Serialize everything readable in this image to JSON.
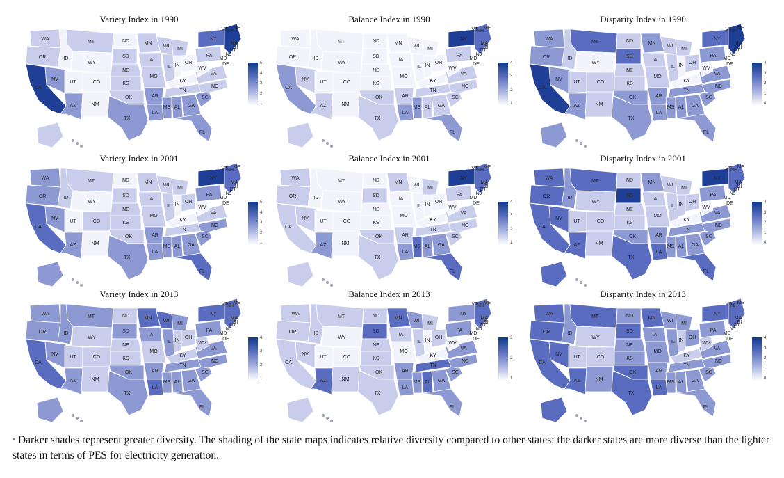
{
  "panels": [
    {
      "title": "Variety Index in 1990",
      "legend": [
        "5",
        "4",
        "3",
        "2",
        "1"
      ],
      "shade": {
        "WA": 1,
        "OR": 1,
        "CA": 4,
        "NV": 2,
        "ID": 0,
        "MT": 1,
        "WY": 0,
        "UT": 0,
        "CO": 0,
        "AZ": 2,
        "NM": 0,
        "ND": 0,
        "SD": 1,
        "NE": 1,
        "KS": 1,
        "OK": 1,
        "TX": 2,
        "MN": 1,
        "IA": 1,
        "MO": 1,
        "AR": 2,
        "LA": 2,
        "WI": 1,
        "IL": 1,
        "MS": 2,
        "MI": 1,
        "IN": 0,
        "OH": 0,
        "KY": 0,
        "TN": 1,
        "AL": 2,
        "GA": 2,
        "FL": 2,
        "SC": 2,
        "NC": 1,
        "VA": 1,
        "WV": 0,
        "PA": 1,
        "NY": 3,
        "NE_reg": 4,
        "AK": 1
      }
    },
    {
      "title": "Balance Index in 1990",
      "legend": [
        "4",
        "3",
        "2",
        "1"
      ],
      "shade": {
        "WA": 0,
        "OR": 0,
        "CA": 2,
        "NV": 1,
        "ID": 0,
        "MT": 0,
        "WY": 0,
        "UT": 0,
        "CO": 0,
        "AZ": 1,
        "NM": 0,
        "ND": 0,
        "SD": 0,
        "NE": 0,
        "KS": 0,
        "OK": 1,
        "TX": 1,
        "MN": 0,
        "IA": 0,
        "MO": 0,
        "AR": 1,
        "LA": 2,
        "WI": 0,
        "IL": 0,
        "MS": 2,
        "MI": 0,
        "IN": 0,
        "OH": 0,
        "KY": 0,
        "TN": 1,
        "AL": 1,
        "GA": 1,
        "FL": 2,
        "SC": 1,
        "NC": 1,
        "VA": 1,
        "WV": 0,
        "PA": 1,
        "NY": 4,
        "NE_reg": 3,
        "AK": 1
      }
    },
    {
      "title": "Disparity Index in 1990",
      "legend": [
        "4",
        "3",
        "2",
        "1",
        "0"
      ],
      "shade": {
        "WA": 2,
        "OR": 2,
        "CA": 4,
        "NV": 2,
        "ID": 1,
        "MT": 3,
        "WY": 0,
        "UT": 1,
        "CO": 1,
        "AZ": 2,
        "NM": 1,
        "ND": 1,
        "SD": 3,
        "NE": 1,
        "KS": 1,
        "OK": 2,
        "TX": 2,
        "MN": 2,
        "IA": 1,
        "MO": 1,
        "AR": 2,
        "LA": 2,
        "WI": 1,
        "IL": 1,
        "MS": 2,
        "MI": 1,
        "IN": 0,
        "OH": 1,
        "KY": 0,
        "TN": 2,
        "AL": 2,
        "GA": 2,
        "FL": 2,
        "SC": 2,
        "NC": 2,
        "VA": 2,
        "WV": 0,
        "PA": 2,
        "NY": 3,
        "NE_reg": 4,
        "AK": 2
      }
    },
    {
      "title": "Variety Index in 2001",
      "legend": [
        "5",
        "4",
        "3",
        "2",
        "1"
      ],
      "shade": {
        "WA": 2,
        "OR": 2,
        "CA": 3,
        "NV": 2,
        "ID": 1,
        "MT": 1,
        "WY": 0,
        "UT": 0,
        "CO": 1,
        "AZ": 2,
        "NM": 0,
        "ND": 0,
        "SD": 1,
        "NE": 1,
        "KS": 1,
        "OK": 1,
        "TX": 2,
        "MN": 1,
        "IA": 1,
        "MO": 1,
        "AR": 2,
        "LA": 2,
        "WI": 1,
        "IL": 1,
        "MS": 2,
        "MI": 1,
        "IN": 0,
        "OH": 1,
        "KY": 0,
        "TN": 1,
        "AL": 2,
        "GA": 2,
        "FL": 3,
        "SC": 2,
        "NC": 2,
        "VA": 1,
        "WV": 0,
        "PA": 2,
        "NY": 4,
        "NE_reg": 3,
        "AK": 2
      }
    },
    {
      "title": "Balance Index in 2001",
      "legend": [
        "4",
        "3",
        "2",
        "1"
      ],
      "shade": {
        "WA": 1,
        "OR": 1,
        "CA": 1,
        "NV": 1,
        "ID": 0,
        "MT": 0,
        "WY": 0,
        "UT": 0,
        "CO": 0,
        "AZ": 2,
        "NM": 0,
        "ND": 0,
        "SD": 1,
        "NE": 0,
        "KS": 0,
        "OK": 1,
        "TX": 1,
        "MN": 1,
        "IA": 0,
        "MO": 0,
        "AR": 1,
        "LA": 2,
        "WI": 0,
        "IL": 0,
        "MS": 3,
        "MI": 1,
        "IN": 0,
        "OH": 0,
        "KY": 0,
        "TN": 1,
        "AL": 2,
        "GA": 2,
        "FL": 3,
        "SC": 1,
        "NC": 1,
        "VA": 1,
        "WV": 0,
        "PA": 1,
        "NY": 4,
        "NE_reg": 3,
        "AK": 1
      }
    },
    {
      "title": "Disparity Index in 2001",
      "legend": [
        "4",
        "3",
        "2",
        "1",
        "0"
      ],
      "shade": {
        "WA": 3,
        "OR": 3,
        "CA": 3,
        "NV": 3,
        "ID": 2,
        "MT": 3,
        "WY": 1,
        "UT": 1,
        "CO": 1,
        "AZ": 3,
        "NM": 1,
        "ND": 1,
        "SD": 4,
        "NE": 1,
        "KS": 1,
        "OK": 2,
        "TX": 3,
        "MN": 2,
        "IA": 1,
        "MO": 1,
        "AR": 2,
        "LA": 3,
        "WI": 1,
        "IL": 1,
        "MS": 2,
        "MI": 1,
        "IN": 1,
        "OH": 1,
        "KY": 0,
        "TN": 2,
        "AL": 2,
        "GA": 2,
        "FL": 3,
        "SC": 2,
        "NC": 2,
        "VA": 2,
        "WV": 0,
        "PA": 2,
        "NY": 4,
        "NE_reg": 3,
        "AK": 3
      }
    },
    {
      "title": "Variety Index in 2013",
      "legend": [
        "4",
        "3",
        "2",
        "1"
      ],
      "shade": {
        "WA": 2,
        "OR": 2,
        "CA": 3,
        "NV": 2,
        "ID": 2,
        "MT": 2,
        "WY": 1,
        "UT": 1,
        "CO": 1,
        "AZ": 2,
        "NM": 1,
        "ND": 1,
        "SD": 2,
        "NE": 1,
        "KS": 1,
        "OK": 2,
        "TX": 2,
        "MN": 3,
        "IA": 2,
        "MO": 1,
        "AR": 2,
        "LA": 3,
        "WI": 3,
        "IL": 2,
        "MS": 2,
        "MI": 2,
        "IN": 1,
        "OH": 1,
        "KY": 1,
        "TN": 2,
        "AL": 2,
        "GA": 2,
        "FL": 2,
        "SC": 2,
        "NC": 2,
        "VA": 2,
        "WV": 1,
        "PA": 2,
        "NY": 3,
        "NE_reg": 3,
        "AK": 2
      }
    },
    {
      "title": "Balance Index in 2013",
      "legend": [
        "3",
        "2",
        "1"
      ],
      "shade": {
        "WA": 1,
        "OR": 1,
        "CA": 1,
        "NV": 1,
        "ID": 1,
        "MT": 1,
        "WY": 0,
        "UT": 0,
        "CO": 0,
        "AZ": 3,
        "NM": 1,
        "ND": 1,
        "SD": 3,
        "NE": 1,
        "KS": 1,
        "OK": 1,
        "TX": 1,
        "MN": 3,
        "IA": 1,
        "MO": 0,
        "AR": 2,
        "LA": 2,
        "WI": 2,
        "IL": 1,
        "MS": 2,
        "MI": 1,
        "IN": 0,
        "OH": 1,
        "KY": 0,
        "TN": 3,
        "AL": 3,
        "GA": 2,
        "FL": 2,
        "SC": 2,
        "NC": 2,
        "VA": 2,
        "WV": 0,
        "PA": 2,
        "NY": 2,
        "NE_reg": 3,
        "AK": 1
      }
    },
    {
      "title": "Disparity Index in 2013",
      "legend": [
        "4",
        "3",
        "2",
        "1",
        "0"
      ],
      "shade": {
        "WA": 3,
        "OR": 3,
        "CA": 3,
        "NV": 3,
        "ID": 2,
        "MT": 3,
        "WY": 1,
        "UT": 1,
        "CO": 1,
        "AZ": 3,
        "NM": 2,
        "ND": 2,
        "SD": 3,
        "NE": 2,
        "KS": 2,
        "OK": 3,
        "TX": 3,
        "MN": 3,
        "IA": 2,
        "MO": 2,
        "AR": 2,
        "LA": 3,
        "WI": 2,
        "IL": 2,
        "MS": 2,
        "MI": 2,
        "IN": 1,
        "OH": 2,
        "KY": 1,
        "TN": 2,
        "AL": 2,
        "GA": 2,
        "FL": 2,
        "SC": 2,
        "NC": 2,
        "VA": 2,
        "WV": 1,
        "PA": 2,
        "NY": 3,
        "NE_reg": 3,
        "AK": 3
      }
    }
  ],
  "palette": [
    "#f3f4fb",
    "#c7cdea",
    "#8d99d3",
    "#5a6cbf",
    "#1f3f97"
  ],
  "footnote": {
    "marker": "*",
    "text": "Darker shades represent greater diversity. The shading of the state maps indicates relative diversity compared to other states: the darker states are more diverse than the lighter states in terms of PES for electricity generation."
  }
}
